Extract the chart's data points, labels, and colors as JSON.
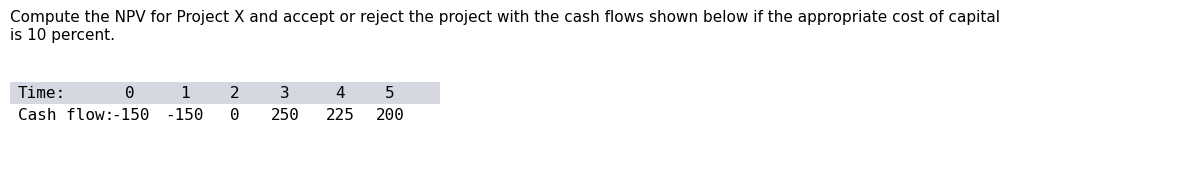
{
  "paragraph_line1": "Compute the NPV for Project X and accept or reject the project with the cash flows shown below if the appropriate cost of capital",
  "paragraph_line2": "is 10 percent.",
  "row1_label": "Time:",
  "row2_label": "Cash flow:",
  "time_values": [
    "0",
    "1",
    "2",
    "3",
    "4",
    "5"
  ],
  "cash_flow_values": [
    "-150",
    "-150",
    "0",
    "250",
    "225",
    "200"
  ],
  "header_bg": "#d5d8e0",
  "body_bg": "#ffffff",
  "para_fontsize": 11.0,
  "table_fontsize": 11.5,
  "text_color": "#000000",
  "fig_width": 12.0,
  "fig_height": 1.69,
  "dpi": 100
}
